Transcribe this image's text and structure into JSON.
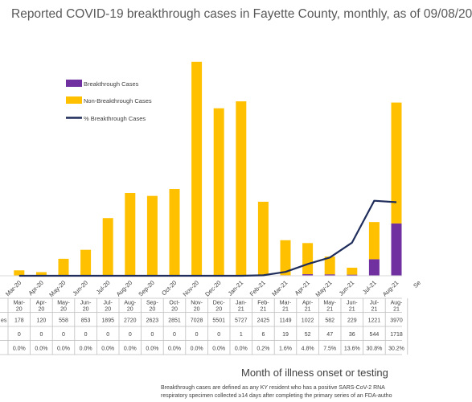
{
  "chart_data": {
    "type": "bar",
    "title": "Reported COVID-19 breakthrough cases in Fayette County, monthly, as of 09/08/20",
    "xlabel": "Month of illness onset or testing",
    "categories": [
      "Mar-20",
      "Apr-20",
      "May-20",
      "Jun-20",
      "Jul-20",
      "Aug-20",
      "Sep-20",
      "Oct-20",
      "Nov-20",
      "Dec-20",
      "Jan-21",
      "Feb-21",
      "Mar-21",
      "Apr-21",
      "May-21",
      "Jun-21",
      "Jul-21",
      "Aug-21"
    ],
    "stacked": true,
    "series": [
      {
        "name": "Breakthrough Cases",
        "color": "#7030a0",
        "values": [
          0,
          0,
          0,
          0,
          0,
          0,
          0,
          0,
          0,
          0,
          1,
          6,
          19,
          52,
          47,
          36,
          544,
          1718
        ]
      },
      {
        "name": "Non-Breakthrough Cases",
        "color": "#ffc000",
        "values": [
          178,
          120,
          558,
          853,
          1895,
          2720,
          2623,
          2851,
          7028,
          5501,
          5727,
          2425,
          1149,
          1022,
          582,
          229,
          1221,
          3970
        ]
      },
      {
        "name": "% Breakthrough Cases",
        "color": "#1f2d5c",
        "type": "line",
        "values": [
          0.0,
          0.0,
          0.0,
          0.0,
          0.0,
          0.0,
          0.0,
          0.0,
          0.0,
          0.0,
          0.0,
          0.2,
          1.6,
          4.8,
          7.5,
          13.6,
          30.8,
          30.2
        ]
      }
    ],
    "ylim": [
      0,
      8000
    ],
    "y2lim": [
      0,
      100
    ],
    "legend_position": "left",
    "table": {
      "header": [
        "Mar-20",
        "Apr-20",
        "May-20",
        "Jun-20",
        "Jul-20",
        "Aug-20",
        "Sep-20",
        "Oct-20",
        "Nov-20",
        "Dec-20",
        "Jan-21",
        "Feb-21",
        "Mar-21",
        "Apr-21",
        "May-21",
        "Jun-21",
        "Jul-21",
        "Aug-21"
      ],
      "row_label": "es",
      "rows": [
        [
          "178",
          "120",
          "558",
          "853",
          "1895",
          "2720",
          "2623",
          "2851",
          "7028",
          "5501",
          "5727",
          "2425",
          "1149",
          "1022",
          "582",
          "229",
          "1221",
          "3970"
        ],
        [
          "0",
          "0",
          "0",
          "0",
          "0",
          "0",
          "0",
          "0",
          "0",
          "0",
          "1",
          "6",
          "19",
          "52",
          "47",
          "36",
          "544",
          "1718"
        ],
        [
          "0.0%",
          "0.0%",
          "0.0%",
          "0.0%",
          "0.0%",
          "0.0%",
          "0.0%",
          "0.0%",
          "0.0%",
          "0.0%",
          "0.0%",
          "0.2%",
          "1.6%",
          "4.8%",
          "7.5%",
          "13.6%",
          "30.8%",
          "30.2%"
        ]
      ]
    },
    "extra_tick": "Se"
  },
  "footnote": {
    "line1": "Breakthrough cases are defined as any KY resident who has a positive SARS-CoV-2 RNA",
    "line2": "respiratory specimen collected ≥14 days after completing the primary series of an FDA-autho"
  }
}
